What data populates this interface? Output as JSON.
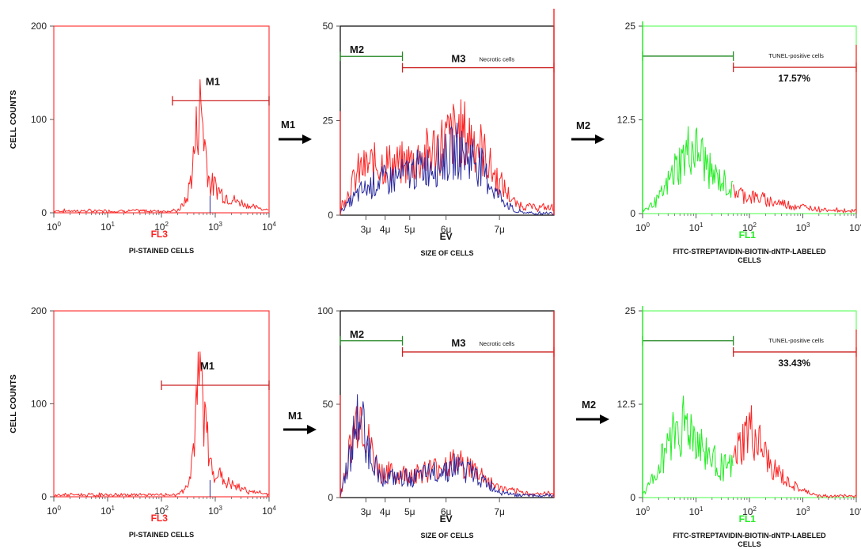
{
  "colors": {
    "red": "#ff2222",
    "blue": "#2a2aa0",
    "green": "#22ee22",
    "frame_red": "#ff3b3b",
    "frame_black": "#000000",
    "frame_green": "#66ff66",
    "marker_red": "#cc2222",
    "marker_green": "#228822",
    "axis": "#555555"
  },
  "labels": {
    "cell_counts": "CELL COUNTS",
    "fl3": "FL3",
    "pi_stained": "PI-STAINED CELLS",
    "ev": "EV",
    "size_of_cells": "SIZE OF CELLS",
    "fl1": "FL1",
    "fitc_line1": "FITC-STREPTAVIDIN-BIOTIN-dNTP-LABELED",
    "fitc_line2": "CELLS",
    "m1": "M1",
    "m2": "M2",
    "m3": "M3",
    "necrotic": "Necrotic cells",
    "tunel": "TUNEL-positive cells",
    "pct_top": "17.57%",
    "pct_bottom": "33.43%"
  },
  "chart_data": [
    {
      "type": "area",
      "panel": "top-left",
      "xlabel": "FL3",
      "caption": "PI-STAINED CELLS",
      "ylabel": "CELL COUNTS",
      "x_scale": "log",
      "xlim": [
        1,
        10000
      ],
      "ylim": [
        0,
        200
      ],
      "yticks": [
        "0",
        "100",
        "200"
      ],
      "xticks": [
        "10^0",
        "10^1",
        "10^2",
        "10^3",
        "10^4"
      ],
      "series": [
        {
          "color": "red",
          "x": [
            200,
            300,
            400,
            480,
            550,
            650,
            800,
            1000,
            1500,
            2500,
            5000,
            10000
          ],
          "y": [
            2,
            15,
            60,
            105,
            115,
            70,
            30,
            28,
            18,
            12,
            6,
            3
          ]
        }
      ],
      "markers": [
        {
          "label": "M1",
          "from": 160,
          "to": 10000
        }
      ]
    },
    {
      "type": "area",
      "panel": "top-middle",
      "xlabel": "EV",
      "caption": "SIZE OF CELLS",
      "ylim": [
        0,
        50
      ],
      "yticks": [
        "0",
        "25",
        "50"
      ],
      "xticks": [
        "3μ",
        "4μ",
        "5μ",
        "6μ",
        "7μ"
      ],
      "series": [
        {
          "color": "red",
          "x": [
            2.5,
            3.0,
            3.5,
            4.0,
            4.5,
            5.0,
            5.5,
            6.0,
            6.5,
            7.0,
            7.5,
            8.0
          ],
          "y": [
            2,
            12,
            14,
            13,
            15,
            18,
            22,
            20,
            10,
            3,
            2,
            2
          ]
        },
        {
          "color": "blue",
          "x": [
            2.5,
            3.0,
            3.5,
            4.0,
            4.5,
            5.0,
            5.5,
            6.0,
            6.5,
            7.0,
            7.5,
            8.0
          ],
          "y": [
            1,
            6,
            9,
            10,
            12,
            14,
            17,
            15,
            6,
            1,
            0.5,
            0.5
          ]
        }
      ],
      "markers": [
        {
          "label": "M2",
          "from": 2.5,
          "to": 4.1
        },
        {
          "label": "M3",
          "from": 4.1,
          "to": 8.0,
          "note": "Necrotic cells"
        }
      ]
    },
    {
      "type": "area",
      "panel": "top-right",
      "xlabel": "FL1",
      "caption": "FITC-STREPTAVIDIN-BIOTIN-dNTP-LABELED CELLS",
      "x_scale": "log",
      "xlim": [
        1,
        10000
      ],
      "ylim": [
        0,
        25
      ],
      "yticks": [
        "0",
        "12.5",
        "25"
      ],
      "xticks": [
        "10^0",
        "10^1",
        "10^2",
        "10^3",
        "10^4"
      ],
      "series": [
        {
          "color": "green",
          "x": [
            1,
            2,
            4,
            8,
            12,
            20,
            35,
            50
          ],
          "y": [
            0.5,
            2,
            6,
            9,
            8,
            5,
            4,
            3
          ]
        },
        {
          "color": "red",
          "x": [
            50,
            80,
            150,
            300,
            700,
            1500,
            3000,
            10000
          ],
          "y": [
            3,
            2.5,
            2,
            1.5,
            1,
            0.7,
            0.5,
            0.3
          ]
        }
      ],
      "markers": [
        {
          "label": "M1",
          "from": 1,
          "to": 50
        },
        {
          "label": "M2",
          "from": 50,
          "to": 10000,
          "note": "TUNEL-positive cells",
          "percent": "17.57%"
        }
      ]
    },
    {
      "type": "area",
      "panel": "bottom-left",
      "xlabel": "FL3",
      "caption": "PI-STAINED CELLS",
      "ylabel": "CELL COUNTS",
      "x_scale": "log",
      "xlim": [
        1,
        10000
      ],
      "ylim": [
        0,
        200
      ],
      "yticks": [
        "0",
        "100",
        "200"
      ],
      "xticks": [
        "10^0",
        "10^1",
        "10^2",
        "10^3",
        "10^4"
      ],
      "series": [
        {
          "color": "red",
          "x": [
            200,
            300,
            400,
            480,
            550,
            650,
            800,
            1000,
            1500,
            2500,
            5000,
            10000
          ],
          "y": [
            2,
            12,
            55,
            110,
            125,
            80,
            35,
            28,
            16,
            10,
            5,
            2
          ]
        }
      ],
      "markers": [
        {
          "label": "M1",
          "from": 100,
          "to": 10000
        }
      ]
    },
    {
      "type": "area",
      "panel": "bottom-middle",
      "xlabel": "EV",
      "caption": "SIZE OF CELLS",
      "ylim": [
        0,
        100
      ],
      "yticks": [
        "0",
        "50",
        "100"
      ],
      "xticks": [
        "3μ",
        "4μ",
        "5μ",
        "6μ",
        "7μ"
      ],
      "series": [
        {
          "color": "red",
          "x": [
            2.5,
            2.8,
            3.0,
            3.2,
            3.5,
            4.0,
            4.5,
            5.0,
            5.5,
            6.0,
            6.5,
            7.0,
            7.5,
            8.0
          ],
          "y": [
            2,
            30,
            48,
            30,
            14,
            12,
            13,
            16,
            19,
            14,
            6,
            3,
            2,
            2
          ]
        },
        {
          "color": "blue",
          "x": [
            2.5,
            2.8,
            3.0,
            3.2,
            3.5,
            4.0,
            4.5,
            5.0,
            5.5,
            6.0,
            6.5,
            7.0,
            7.5,
            8.0
          ],
          "y": [
            1,
            28,
            45,
            28,
            12,
            10,
            11,
            14,
            17,
            12,
            4,
            1.5,
            1,
            1
          ]
        }
      ],
      "markers": [
        {
          "label": "M2",
          "from": 2.5,
          "to": 4.1
        },
        {
          "label": "M3",
          "from": 4.1,
          "to": 8.0,
          "note": "Necrotic cells"
        }
      ]
    },
    {
      "type": "area",
      "panel": "bottom-right",
      "xlabel": "FL1",
      "caption": "FITC-STREPTAVIDIN-BIOTIN-dNTP-LABELED CELLS",
      "x_scale": "log",
      "xlim": [
        1,
        10000
      ],
      "ylim": [
        0,
        25
      ],
      "yticks": [
        "0",
        "12.5",
        "25"
      ],
      "xticks": [
        "10^0",
        "10^1",
        "10^2",
        "10^3",
        "10^4"
      ],
      "series": [
        {
          "color": "green",
          "x": [
            1,
            2,
            3,
            5,
            8,
            12,
            20,
            35,
            50
          ],
          "y": [
            0.5,
            4,
            8,
            10,
            9,
            7,
            5,
            4,
            4
          ]
        },
        {
          "color": "red",
          "x": [
            50,
            70,
            100,
            150,
            250,
            500,
            1000,
            2000
          ],
          "y": [
            5,
            7,
            9,
            7,
            4,
            2,
            0.8,
            0.2
          ]
        }
      ],
      "markers": [
        {
          "label": "M1",
          "from": 1,
          "to": 50
        },
        {
          "label": "M2",
          "from": 50,
          "to": 10000,
          "note": "TUNEL-positive cells",
          "percent": "33.43%"
        }
      ]
    }
  ]
}
